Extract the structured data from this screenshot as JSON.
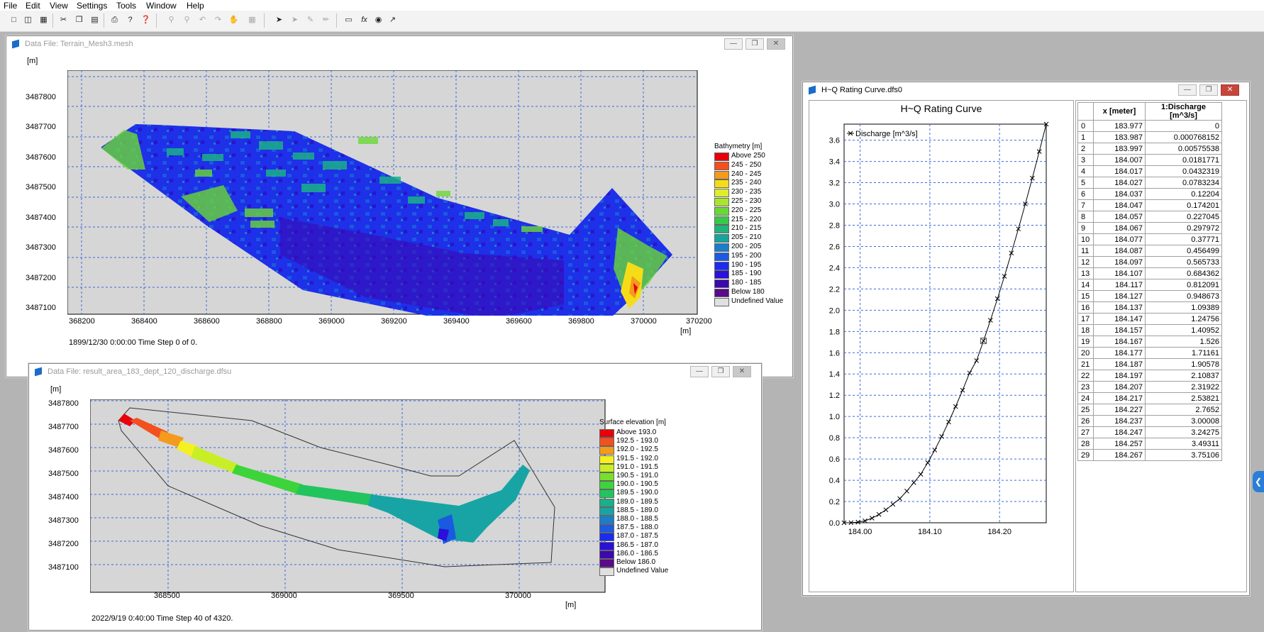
{
  "menu": [
    "File",
    "Edit",
    "View",
    "Settings",
    "Tools",
    "Window",
    "Help"
  ],
  "toolbar_icons": [
    "new-icon",
    "open-icon",
    "save-icon",
    "cut-icon",
    "copy-icon",
    "paste-icon",
    "print-icon",
    "help-icon",
    "context-help-icon",
    "zoom-in-icon",
    "zoom-out-icon",
    "zoom-previous-icon",
    "zoom-next-icon",
    "pan-icon",
    "grid-icon",
    "pointer-icon",
    "select-icon",
    "edit-icon",
    "draw-icon",
    "rectangle-icon",
    "formula-icon",
    "marker-icon",
    "line-icon"
  ],
  "mesh_window": {
    "title": "Data File: Terrain_Mesh3.mesh",
    "y_unit": "[m]",
    "x_unit": "[m]",
    "y_ticks": [
      "3487800",
      "3487700",
      "3487600",
      "3487500",
      "3487400",
      "3487300",
      "3487200",
      "3487100"
    ],
    "x_ticks": [
      "368200",
      "368400",
      "368600",
      "368800",
      "369000",
      "369200",
      "369400",
      "369600",
      "369800",
      "370000",
      "370200"
    ],
    "status": "1899/12/30 0:00:00  Time Step 0 of 0.",
    "legend_title": "Bathymetry [m]",
    "legend": [
      {
        "label": "Above 250",
        "color": "#e8000a"
      },
      {
        "label": "245 - 250",
        "color": "#f3501e"
      },
      {
        "label": "240 - 245",
        "color": "#f49a1c"
      },
      {
        "label": "235 - 240",
        "color": "#f5dc18"
      },
      {
        "label": "230 - 235",
        "color": "#dcef2a"
      },
      {
        "label": "225 - 230",
        "color": "#a8e62e"
      },
      {
        "label": "220 - 225",
        "color": "#6ad836"
      },
      {
        "label": "215 - 220",
        "color": "#38c84a"
      },
      {
        "label": "210 - 215",
        "color": "#20b47a"
      },
      {
        "label": "205 - 210",
        "color": "#16a49c"
      },
      {
        "label": "200 - 205",
        "color": "#1a7ec8"
      },
      {
        "label": "195 - 200",
        "color": "#1c5ae0"
      },
      {
        "label": "190 - 195",
        "color": "#1a2cf0"
      },
      {
        "label": "185 - 190",
        "color": "#2a10d8"
      },
      {
        "label": "180 - 185",
        "color": "#3c08b0"
      },
      {
        "label": "Below 180",
        "color": "#5a0a8a"
      },
      {
        "label": "Undefined Value",
        "color": "#e0e0e0"
      }
    ]
  },
  "dfsu_window": {
    "title": "Data File: result_area_183_dept_120_discharge.dfsu",
    "y_unit": "[m]",
    "x_unit": "[m]",
    "y_ticks": [
      "3487800",
      "3487700",
      "3487600",
      "3487500",
      "3487400",
      "3487300",
      "3487200",
      "3487100"
    ],
    "x_ticks": [
      "368500",
      "369000",
      "369500",
      "370000"
    ],
    "status": "2022/9/19 0:40:00  Time Step 40 of 4320.",
    "legend_title": "Surface elevation [m]",
    "legend": [
      {
        "label": "Above  193.0",
        "color": "#e8000a"
      },
      {
        "label": "192.5 - 193.0",
        "color": "#f3501e"
      },
      {
        "label": "192.0 - 192.5",
        "color": "#f49a1c"
      },
      {
        "label": "191.5 - 192.0",
        "color": "#f5f020"
      },
      {
        "label": "191.0 - 191.5",
        "color": "#c8ee26"
      },
      {
        "label": "190.5 - 191.0",
        "color": "#78e02c"
      },
      {
        "label": "190.0 - 190.5",
        "color": "#3cd43a"
      },
      {
        "label": "189.5 - 190.0",
        "color": "#22c45e"
      },
      {
        "label": "189.0 - 189.5",
        "color": "#1ab088"
      },
      {
        "label": "188.5 - 189.0",
        "color": "#18a4a4"
      },
      {
        "label": "188.0 - 188.5",
        "color": "#1a7ec8"
      },
      {
        "label": "187.5 - 188.0",
        "color": "#1c5ae0"
      },
      {
        "label": "187.0 - 187.5",
        "color": "#1a2cf0"
      },
      {
        "label": "186.5 - 187.0",
        "color": "#2a10d8"
      },
      {
        "label": "186.0 - 186.5",
        "color": "#3c08b0"
      },
      {
        "label": "Below  186.0",
        "color": "#5a0a8a"
      },
      {
        "label": "Undefined Value",
        "color": "#e0e0e0"
      }
    ]
  },
  "hq_window": {
    "title": "H~Q Rating Curve.dfs0",
    "table_headers": [
      "",
      "x  [meter]",
      "1:Discharge [m^3/s]"
    ],
    "table_rows": [
      [
        "0",
        "183.977",
        "0"
      ],
      [
        "1",
        "183.987",
        "0.000768152"
      ],
      [
        "2",
        "183.997",
        "0.00575538"
      ],
      [
        "3",
        "184.007",
        "0.0181771"
      ],
      [
        "4",
        "184.017",
        "0.0432319"
      ],
      [
        "5",
        "184.027",
        "0.0783234"
      ],
      [
        "6",
        "184.037",
        "0.12204"
      ],
      [
        "7",
        "184.047",
        "0.174201"
      ],
      [
        "8",
        "184.057",
        "0.227045"
      ],
      [
        "9",
        "184.067",
        "0.297972"
      ],
      [
        "10",
        "184.077",
        "0.37771"
      ],
      [
        "11",
        "184.087",
        "0.456499"
      ],
      [
        "12",
        "184.097",
        "0.565733"
      ],
      [
        "13",
        "184.107",
        "0.684362"
      ],
      [
        "14",
        "184.117",
        "0.812091"
      ],
      [
        "15",
        "184.127",
        "0.948673"
      ],
      [
        "16",
        "184.137",
        "1.09389"
      ],
      [
        "17",
        "184.147",
        "1.24756"
      ],
      [
        "18",
        "184.157",
        "1.40952"
      ],
      [
        "19",
        "184.167",
        "1.526"
      ],
      [
        "20",
        "184.177",
        "1.71161"
      ],
      [
        "21",
        "184.187",
        "1.90578"
      ],
      [
        "22",
        "184.197",
        "2.10837"
      ],
      [
        "23",
        "184.207",
        "2.31922"
      ],
      [
        "24",
        "184.217",
        "2.53821"
      ],
      [
        "25",
        "184.227",
        "2.7652"
      ],
      [
        "26",
        "184.237",
        "3.00008"
      ],
      [
        "27",
        "184.247",
        "3.24275"
      ],
      [
        "28",
        "184.257",
        "3.49311"
      ],
      [
        "29",
        "184.267",
        "3.75106"
      ]
    ]
  },
  "chart_data": {
    "type": "line",
    "title": "H~Q Rating Curve",
    "xlabel": "",
    "ylabel": "",
    "legend": "Discharge [m^3/s]",
    "legend_position": "top-left",
    "grid": true,
    "xlim": [
      183.977,
      184.267
    ],
    "ylim": [
      0,
      3.75106
    ],
    "x_ticks": [
      184.0,
      184.1,
      184.2
    ],
    "x_tick_labels": [
      "184.00",
      "184.10",
      "184.20"
    ],
    "y_ticks": [
      0,
      0.2,
      0.4,
      0.6,
      0.8,
      1.0,
      1.2,
      1.4,
      1.6,
      1.8,
      2.0,
      2.2,
      2.4,
      2.6,
      2.8,
      3.0,
      3.2,
      3.4,
      3.6
    ],
    "y_tick_labels": [
      "0.0",
      "0.2",
      "0.4",
      "0.6",
      "0.8",
      "1.0",
      "1.2",
      "1.4",
      "1.6",
      "1.8",
      "2.0",
      "2.2",
      "2.4",
      "2.6",
      "2.8",
      "3.0",
      "3.2",
      "3.4",
      "3.6"
    ],
    "series": [
      {
        "name": "Discharge [m^3/s]",
        "x": [
          183.977,
          183.987,
          183.997,
          184.007,
          184.017,
          184.027,
          184.037,
          184.047,
          184.057,
          184.067,
          184.077,
          184.087,
          184.097,
          184.107,
          184.117,
          184.127,
          184.137,
          184.147,
          184.157,
          184.167,
          184.177,
          184.187,
          184.197,
          184.207,
          184.217,
          184.227,
          184.237,
          184.247,
          184.257,
          184.267
        ],
        "values": [
          0,
          0.000768152,
          0.00575538,
          0.0181771,
          0.0432319,
          0.0783234,
          0.12204,
          0.174201,
          0.227045,
          0.297972,
          0.37771,
          0.456499,
          0.565733,
          0.684362,
          0.812091,
          0.948673,
          1.09389,
          1.24756,
          1.40952,
          1.526,
          1.71161,
          1.90578,
          2.10837,
          2.31922,
          2.53821,
          2.7652,
          3.00008,
          3.24275,
          3.49311,
          3.75106
        ]
      }
    ]
  }
}
